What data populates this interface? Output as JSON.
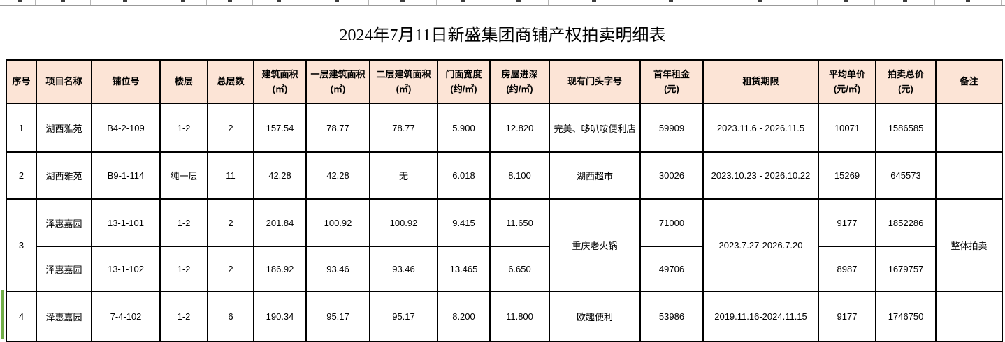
{
  "title": "2024年7月11日新盛集团商铺产权拍卖明细表",
  "colors": {
    "header_fill": "#fce4d6",
    "grid_border": "#000000",
    "row_marker_green": "#70ad47"
  },
  "table": {
    "headers": [
      {
        "l1": "序号",
        "l2": ""
      },
      {
        "l1": "项目名称",
        "l2": ""
      },
      {
        "l1": "铺位号",
        "l2": ""
      },
      {
        "l1": "楼层",
        "l2": ""
      },
      {
        "l1": "总层数",
        "l2": ""
      },
      {
        "l1": "建筑面积",
        "l2": "(㎡)"
      },
      {
        "l1": "一层建筑面积",
        "l2": "(㎡)"
      },
      {
        "l1": "二层建筑面积",
        "l2": "(㎡)"
      },
      {
        "l1": "门面宽度",
        "l2": "(约/㎡)"
      },
      {
        "l1": "房屋进深",
        "l2": "(约/㎡)"
      },
      {
        "l1": "现有门头字号",
        "l2": ""
      },
      {
        "l1": "首年租金",
        "l2": "(元)"
      },
      {
        "l1": "租赁期限",
        "l2": ""
      },
      {
        "l1": "平均单价",
        "l2": "(元/㎡)"
      },
      {
        "l1": "拍卖总价",
        "l2": "(元)"
      },
      {
        "l1": "备注",
        "l2": ""
      }
    ],
    "rows": [
      {
        "c": [
          "1",
          "湖西雅苑",
          "B4-2-109",
          "1-2",
          "2",
          "157.54",
          "78.77",
          "78.77",
          "5.900",
          "12.820",
          "完美、哆叭咹便利店",
          "59909",
          "2023.11.6 - 2026.11.5",
          "10071",
          "1586585",
          ""
        ]
      },
      {
        "c": [
          "2",
          "湖西雅苑",
          "B9-1-114",
          "纯一层",
          "11",
          "42.28",
          "42.28",
          "无",
          "6.018",
          "8.100",
          "湖西超市",
          "30026",
          "2023.10.23 - 2026.10.22",
          "15269",
          "645573",
          ""
        ]
      },
      {
        "c": [
          "3",
          "泽惠嘉园",
          "13-1-101",
          "1-2",
          "2",
          "201.84",
          "100.92",
          "100.92",
          "9.415",
          "11.650",
          "重庆老火锅",
          "71000",
          "2023.7.27-2026.7.20",
          "9177",
          "1852286",
          "整体拍卖"
        ]
      },
      {
        "c": [
          "泽惠嘉园",
          "13-1-102",
          "1-2",
          "2",
          "186.92",
          "93.46",
          "93.46",
          "13.465",
          "6.650",
          "49706",
          "8987",
          "1679757"
        ]
      },
      {
        "c": [
          "4",
          "泽惠嘉园",
          "7-4-102",
          "1-2",
          "6",
          "190.34",
          "95.17",
          "95.17",
          "8.200",
          "11.800",
          "欧趣便利",
          "53986",
          "2019.11.16-2024.11.15",
          "9177",
          "1746750",
          ""
        ]
      }
    ]
  }
}
